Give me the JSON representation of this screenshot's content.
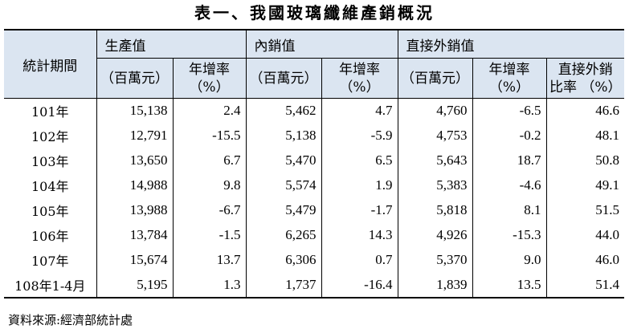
{
  "title": "表一、我國玻璃纖維產銷概況",
  "headers": {
    "period": "統計期間",
    "production": "生產值",
    "domestic": "內銷值",
    "export": "直接外銷值",
    "unit_million": "（百萬元）",
    "growth_rate": "年增率",
    "percent": "（%）",
    "export_ratio_line1": "直接外銷",
    "export_ratio_line2": "比率 （%）"
  },
  "rows": [
    {
      "period": "101年",
      "prod": "15,138",
      "prod_g": "2.4",
      "dom": "5,462",
      "dom_g": "4.7",
      "exp": "4,760",
      "exp_g": "-6.5",
      "ratio": "46.6"
    },
    {
      "period": "102年",
      "prod": "12,791",
      "prod_g": "-15.5",
      "dom": "5,138",
      "dom_g": "-5.9",
      "exp": "4,753",
      "exp_g": "-0.2",
      "ratio": "48.1"
    },
    {
      "period": "103年",
      "prod": "13,650",
      "prod_g": "6.7",
      "dom": "5,470",
      "dom_g": "6.5",
      "exp": "5,643",
      "exp_g": "18.7",
      "ratio": "50.8"
    },
    {
      "period": "104年",
      "prod": "14,988",
      "prod_g": "9.8",
      "dom": "5,574",
      "dom_g": "1.9",
      "exp": "5,383",
      "exp_g": "-4.6",
      "ratio": "49.1"
    },
    {
      "period": "105年",
      "prod": "13,988",
      "prod_g": "-6.7",
      "dom": "5,479",
      "dom_g": "-1.7",
      "exp": "5,818",
      "exp_g": "8.1",
      "ratio": "51.5"
    },
    {
      "period": "106年",
      "prod": "13,784",
      "prod_g": "-1.5",
      "dom": "6,265",
      "dom_g": "14.3",
      "exp": "4,926",
      "exp_g": "-15.3",
      "ratio": "44.0"
    },
    {
      "period": "107年",
      "prod": "15,674",
      "prod_g": "13.7",
      "dom": "6,306",
      "dom_g": "0.7",
      "exp": "5,370",
      "exp_g": "9.0",
      "ratio": "46.0"
    },
    {
      "period": "108年1-4月",
      "prod": "5,195",
      "prod_g": "1.3",
      "dom": "1,737",
      "dom_g": "-16.4",
      "exp": "1,839",
      "exp_g": "13.5",
      "ratio": "51.4"
    }
  ],
  "source": "資料來源:經濟部統計處",
  "colors": {
    "header_bg": "#dbe5f1",
    "border": "#000000"
  }
}
